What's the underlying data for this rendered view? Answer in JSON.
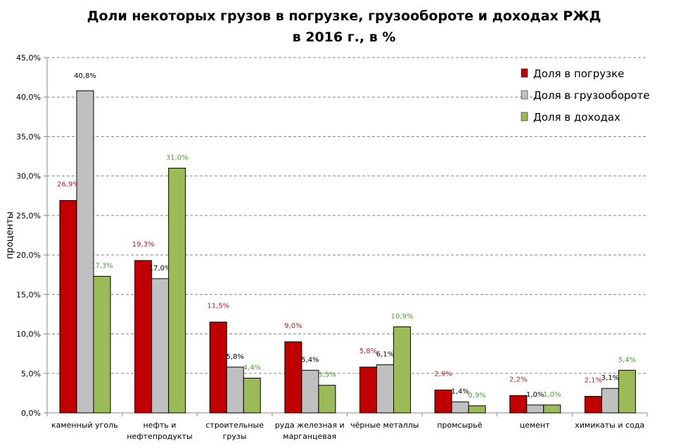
{
  "chart_data": {
    "type": "bar",
    "title": "Доли некоторых грузов в погрузке, грузообороте и доходах РЖД",
    "subtitle": "в 2016 г., в %",
    "ylabel": "проценты",
    "xlabel": "",
    "ylim": [
      0,
      45
    ],
    "yticks": [
      "0,0%",
      "5,0%",
      "10,0%",
      "15,0%",
      "20,0%",
      "25,0%",
      "30,0%",
      "35,0%",
      "40,0%",
      "45,0%"
    ],
    "grid": true,
    "legend_position": "top-right",
    "categories": [
      [
        "каменный уголь"
      ],
      [
        "нефть и",
        "нефтепродукты"
      ],
      [
        "строительные",
        "грузы"
      ],
      [
        "руда железная и",
        "марганцевая"
      ],
      [
        "чёрные металлы"
      ],
      [
        "промсырьё"
      ],
      [
        "цемент"
      ],
      [
        "химикаты и сода"
      ]
    ],
    "series": [
      {
        "name": "Доля в погрузке",
        "color": "#c00000",
        "label_color": "#b22222",
        "values": [
          26.9,
          19.3,
          11.5,
          9.0,
          5.8,
          2.9,
          2.2,
          2.1
        ],
        "labels": [
          "26,9%",
          "19,3%",
          "11,5%",
          "9,0%",
          "5,8%",
          "2,9%",
          "2,2%",
          "2,1%"
        ]
      },
      {
        "name": "Доля в грузообороте",
        "color": "#c0c0c0",
        "label_color": "#000000",
        "values": [
          40.8,
          17.0,
          5.8,
          5.4,
          6.1,
          1.4,
          1.0,
          3.1
        ],
        "labels": [
          "40,8%",
          "17,0%",
          "5,8%",
          "5,4%",
          "6,1%",
          "1,4%",
          "1,0%",
          "3,1%"
        ]
      },
      {
        "name": "Доля в доходах",
        "color": "#9bbb59",
        "label_color": "#4e9a3a",
        "values": [
          17.3,
          31.0,
          4.4,
          3.5,
          10.9,
          0.9,
          1.0,
          5.4
        ],
        "labels": [
          "17,3%",
          "31,0%",
          "4,4%",
          "3,5%",
          "10,9%",
          "0,9%",
          "1,0%",
          "5,4%"
        ]
      }
    ]
  }
}
